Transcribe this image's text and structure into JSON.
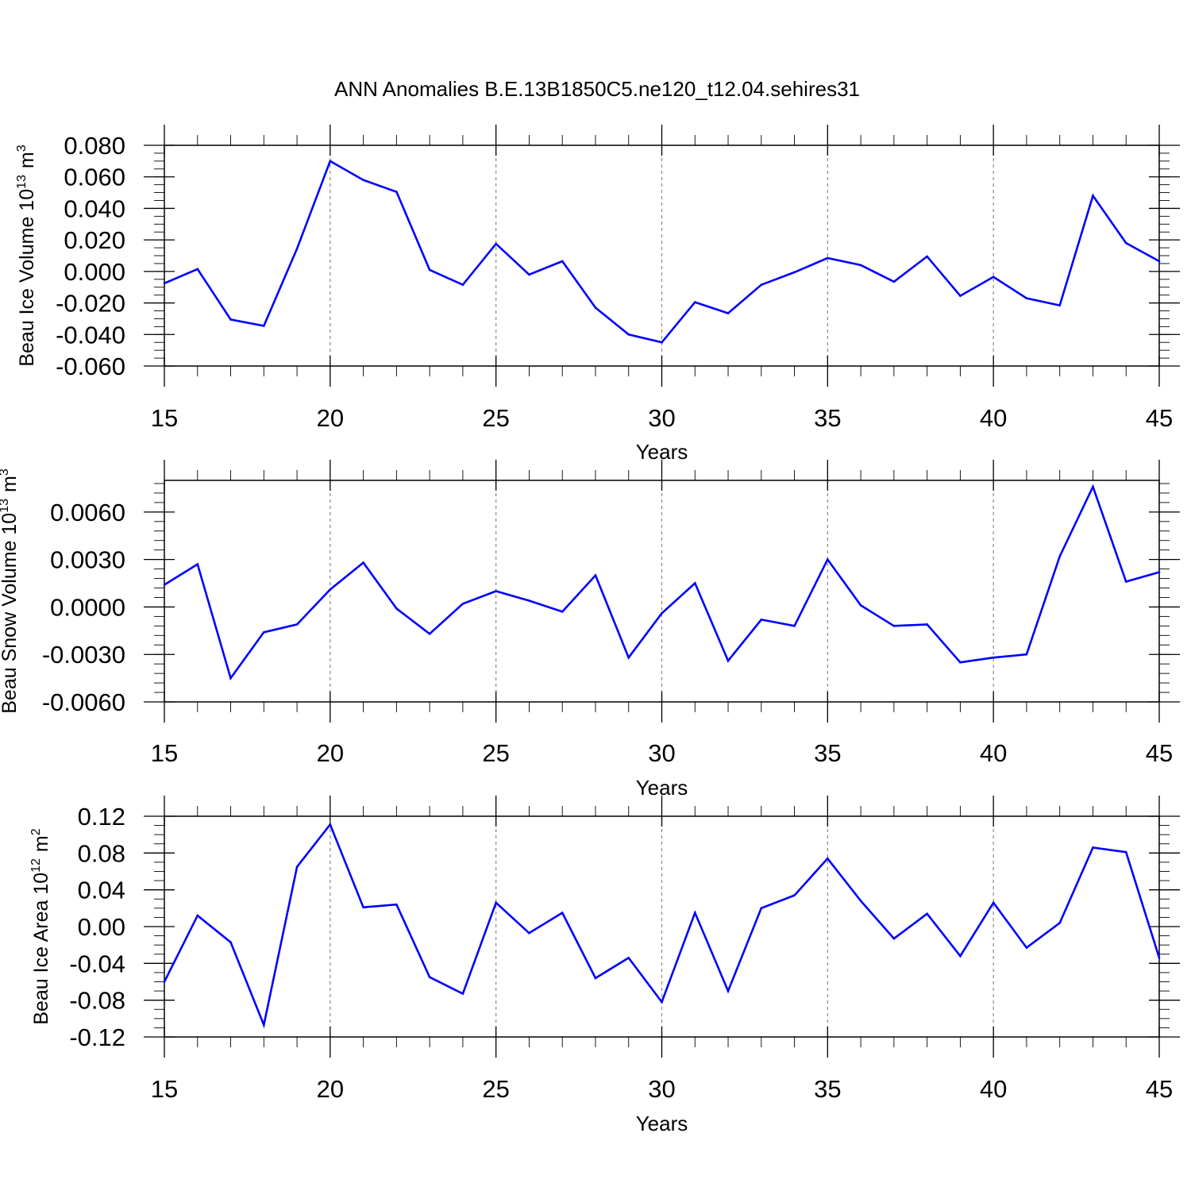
{
  "title": "ANN Anomalies B.E.13B1850C5.ne120_t12.04.sehires31",
  "line_color": "#0000ff",
  "chart_data": [
    {
      "type": "line",
      "name": "ice-volume",
      "ylabel": "Beau Ice Volume 10",
      "ylabel_exp": "13",
      "ylabel_unit": "m",
      "ylabel_unit_exp": "3",
      "xlabel": "Years",
      "xlim": [
        15,
        45
      ],
      "ylim": [
        -0.06,
        0.08
      ],
      "x_ticks": [
        15,
        20,
        25,
        30,
        35,
        40,
        45
      ],
      "x_tick_labels": [
        "15",
        "20",
        "25",
        "30",
        "35",
        "40",
        "45"
      ],
      "y_ticks": [
        -0.06,
        -0.04,
        -0.02,
        0.0,
        0.02,
        0.04,
        0.06,
        0.08
      ],
      "y_tick_labels": [
        "-0.060",
        "-0.040",
        "-0.020",
        "0.000",
        "0.020",
        "0.040",
        "0.060",
        "0.080"
      ],
      "y_minor_step": 0.005,
      "grid_x": [
        20,
        25,
        30,
        35,
        40
      ],
      "x": [
        15,
        16,
        17,
        18,
        19,
        20,
        21,
        22,
        23,
        24,
        25,
        26,
        27,
        28,
        29,
        30,
        31,
        32,
        33,
        34,
        35,
        36,
        37,
        38,
        39,
        40,
        41,
        42,
        43,
        44,
        45
      ],
      "y": [
        -0.0075,
        0.0015,
        -0.0305,
        -0.0345,
        0.0145,
        0.07,
        0.058,
        0.0505,
        0.001,
        -0.0085,
        0.0175,
        -0.002,
        0.0065,
        -0.023,
        -0.04,
        -0.045,
        -0.0195,
        -0.0265,
        -0.0085,
        -0.0005,
        0.0085,
        0.004,
        -0.0065,
        0.0095,
        -0.0155,
        -0.0035,
        -0.017,
        -0.0215,
        0.048,
        0.018,
        0.0065
      ]
    },
    {
      "type": "line",
      "name": "snow-volume",
      "ylabel": "Beau Snow Volume 10",
      "ylabel_exp": "13",
      "ylabel_unit": "m",
      "ylabel_unit_exp": "3",
      "xlabel": "Years",
      "xlim": [
        15,
        45
      ],
      "ylim": [
        -0.006,
        0.008
      ],
      "x_ticks": [
        15,
        20,
        25,
        30,
        35,
        40,
        45
      ],
      "x_tick_labels": [
        "15",
        "20",
        "25",
        "30",
        "35",
        "40",
        "45"
      ],
      "y_ticks": [
        -0.006,
        -0.003,
        0.0,
        0.003,
        0.006
      ],
      "y_tick_labels": [
        "-0.0060",
        "-0.0030",
        "0.0000",
        "0.0030",
        "0.0060"
      ],
      "y_minor_step": 0.0006,
      "grid_x": [
        20,
        25,
        30,
        35,
        40
      ],
      "x": [
        15,
        16,
        17,
        18,
        19,
        20,
        21,
        22,
        23,
        24,
        25,
        26,
        27,
        28,
        29,
        30,
        31,
        32,
        33,
        34,
        35,
        36,
        37,
        38,
        39,
        40,
        41,
        42,
        43,
        44,
        45
      ],
      "y": [
        0.0014,
        0.0027,
        -0.0045,
        -0.0016,
        -0.0011,
        0.0011,
        0.0028,
        -0.0001,
        -0.0017,
        0.0002,
        0.001,
        0.0004,
        -0.0003,
        0.002,
        -0.0032,
        -0.0004,
        0.0015,
        -0.0034,
        -0.0008,
        -0.0012,
        0.003,
        0.0001,
        -0.0012,
        -0.0011,
        -0.0035,
        -0.0032,
        -0.003,
        0.0032,
        0.0076,
        0.0016,
        0.0022
      ]
    },
    {
      "type": "line",
      "name": "ice-area",
      "ylabel": "Beau Ice Area 10",
      "ylabel_exp": "12",
      "ylabel_unit": "m",
      "ylabel_unit_exp": "2",
      "xlabel": "Years",
      "xlim": [
        15,
        45
      ],
      "ylim": [
        -0.12,
        0.12
      ],
      "x_ticks": [
        15,
        20,
        25,
        30,
        35,
        40,
        45
      ],
      "x_tick_labels": [
        "15",
        "20",
        "25",
        "30",
        "35",
        "40",
        "45"
      ],
      "y_ticks": [
        -0.12,
        -0.08,
        -0.04,
        0.0,
        0.04,
        0.08,
        0.12
      ],
      "y_tick_labels": [
        "-0.12",
        "-0.08",
        "-0.04",
        "0.00",
        "0.04",
        "0.08",
        "0.12"
      ],
      "y_minor_step": 0.01,
      "grid_x": [
        20,
        25,
        30,
        35,
        40
      ],
      "x": [
        15,
        16,
        17,
        18,
        19,
        20,
        21,
        22,
        23,
        24,
        25,
        26,
        27,
        28,
        29,
        30,
        31,
        32,
        33,
        34,
        35,
        36,
        37,
        38,
        39,
        40,
        41,
        42,
        43,
        44,
        45
      ],
      "y": [
        -0.06,
        0.012,
        -0.017,
        -0.107,
        0.065,
        0.111,
        0.021,
        0.024,
        -0.055,
        -0.073,
        0.026,
        -0.007,
        0.015,
        -0.056,
        -0.034,
        -0.082,
        0.015,
        -0.07,
        0.02,
        0.034,
        0.074,
        0.028,
        -0.013,
        0.014,
        -0.032,
        0.026,
        -0.023,
        0.004,
        0.086,
        0.081,
        -0.034
      ]
    }
  ]
}
